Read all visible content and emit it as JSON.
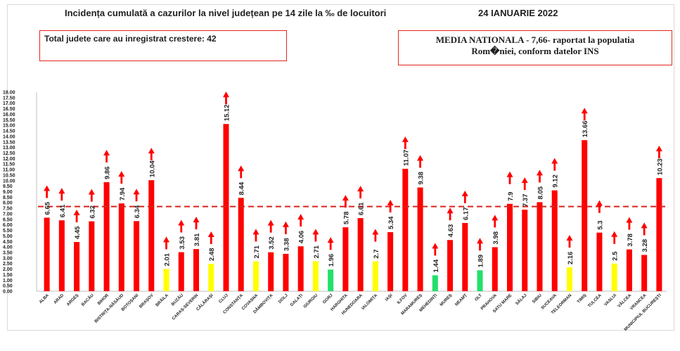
{
  "header": {
    "title": "Incidența cumulată a cazurilor la nivel județean pe 14 zile la ‰ de locuitori",
    "date": "24 IANUARIE 2022",
    "total_label": "Total judete care au inregistrat crestere: 42",
    "national_line1": "MEDIA NATIONALA - 7,66-  raportat la populatia",
    "national_line2": "Rom�niei, conform datelor INS"
  },
  "colors": {
    "red": "#ff0000",
    "yellow": "#ffff00",
    "green": "#22e06a",
    "reference_line": "#d9231a"
  },
  "chart_data": {
    "type": "bar",
    "title": "Incidența cumulată a cazurilor la nivel județean pe 14 zile la ‰ de locuitori",
    "xlabel": "",
    "ylabel": "",
    "ylim": [
      0,
      18
    ],
    "yticks": [
      "0.00",
      "0.50",
      "1.00",
      "1.50",
      "2.00",
      "2.50",
      "3.00",
      "3.50",
      "4.00",
      "4.50",
      "5.00",
      "5.50",
      "6.00",
      "6.50",
      "7.00",
      "7.50",
      "8.00",
      "8.50",
      "9.00",
      "9.50",
      "10.00",
      "10.50",
      "11.00",
      "11.50",
      "12.00",
      "12.50",
      "13.00",
      "13.50",
      "14.00",
      "14.50",
      "15.00",
      "15.50",
      "16.00",
      "16.50",
      "17.00",
      "17.50",
      "18.00"
    ],
    "reference_line": 7.66,
    "grid": false,
    "categories": [
      "ALBA",
      "ARAD",
      "ARGEȘ",
      "BACĂU",
      "BIHOR",
      "BISTRIȚA-NĂSĂUD",
      "BOTOȘANI",
      "BRAȘOV",
      "BRĂILA",
      "BUZĂU",
      "CARAȘ-SEVERIN",
      "CĂLĂRAȘI",
      "CLUJ",
      "CONSTANȚA",
      "COVASNA",
      "DÂMBOVIȚA",
      "DOLJ",
      "GALAȚI",
      "GIURGIU",
      "GORJ",
      "HARGHITA",
      "HUNEDOARA",
      "IALOMIȚA",
      "IAȘI",
      "ILFOV",
      "MARAMUREȘ",
      "MEHEDINȚI",
      "MUREȘ",
      "NEAMȚ",
      "OLT",
      "PRAHOVA",
      "SATU MARE",
      "SĂLAJ",
      "SIBIU",
      "SUCEAVA",
      "TELEORMAN",
      "TIMIȘ",
      "TULCEA",
      "VASLUI",
      "VÂLCEA",
      "VRANCEA",
      "MUNICIPIUL BUCUREȘTI"
    ],
    "labels": [
      "6.65",
      "6.41",
      "4.45",
      "6.32",
      "9.86",
      "7.94",
      "6.34",
      "10.04",
      "2.01",
      "3.53",
      "3.81",
      "2.48",
      "15.12",
      "8.44",
      "2.71",
      "3.52",
      "3.38",
      "4.06",
      "2.71",
      "1.96",
      "5.78",
      "6.61",
      "2.7",
      "5.34",
      "11.07",
      "9.38",
      "1.44",
      "4.63",
      "6.17",
      "1.89",
      "3.98",
      "7.9",
      "7.37",
      "8.05",
      "9.12",
      "2.16",
      "13.66",
      "5.3",
      "2.5",
      "3.78",
      "3.28",
      "10.23"
    ],
    "values": [
      6.65,
      6.41,
      4.45,
      6.32,
      9.86,
      7.94,
      6.34,
      10.04,
      2.01,
      3.53,
      3.81,
      2.48,
      15.12,
      8.44,
      2.71,
      3.52,
      3.38,
      4.06,
      2.71,
      1.96,
      5.78,
      6.61,
      2.7,
      5.34,
      11.07,
      9.38,
      1.44,
      4.63,
      6.17,
      1.89,
      3.98,
      7.9,
      7.37,
      8.05,
      9.12,
      2.16,
      13.66,
      5.3,
      2.5,
      3.78,
      3.28,
      10.23
    ],
    "bar_colors": [
      "red",
      "red",
      "red",
      "red",
      "red",
      "red",
      "red",
      "red",
      "yellow",
      "red",
      "red",
      "yellow",
      "red",
      "red",
      "yellow",
      "red",
      "red",
      "red",
      "yellow",
      "green",
      "red",
      "red",
      "yellow",
      "red",
      "red",
      "red",
      "green",
      "red",
      "red",
      "green",
      "red",
      "red",
      "red",
      "red",
      "red",
      "yellow",
      "red",
      "red",
      "yellow",
      "red",
      "red",
      "red"
    ],
    "trend": [
      "up",
      "up",
      "up",
      "up",
      "up",
      "up",
      "up",
      "up",
      "up",
      "up",
      "up",
      "up",
      "up",
      "up",
      "up",
      "up",
      "up",
      "up",
      "up",
      "up",
      "up",
      "up",
      "up",
      "up",
      "up",
      "up",
      "up",
      "up",
      "up",
      "up",
      "up",
      "up",
      "up",
      "up",
      "up",
      "up",
      "up",
      "up",
      "up",
      "up",
      "up",
      "up"
    ]
  }
}
